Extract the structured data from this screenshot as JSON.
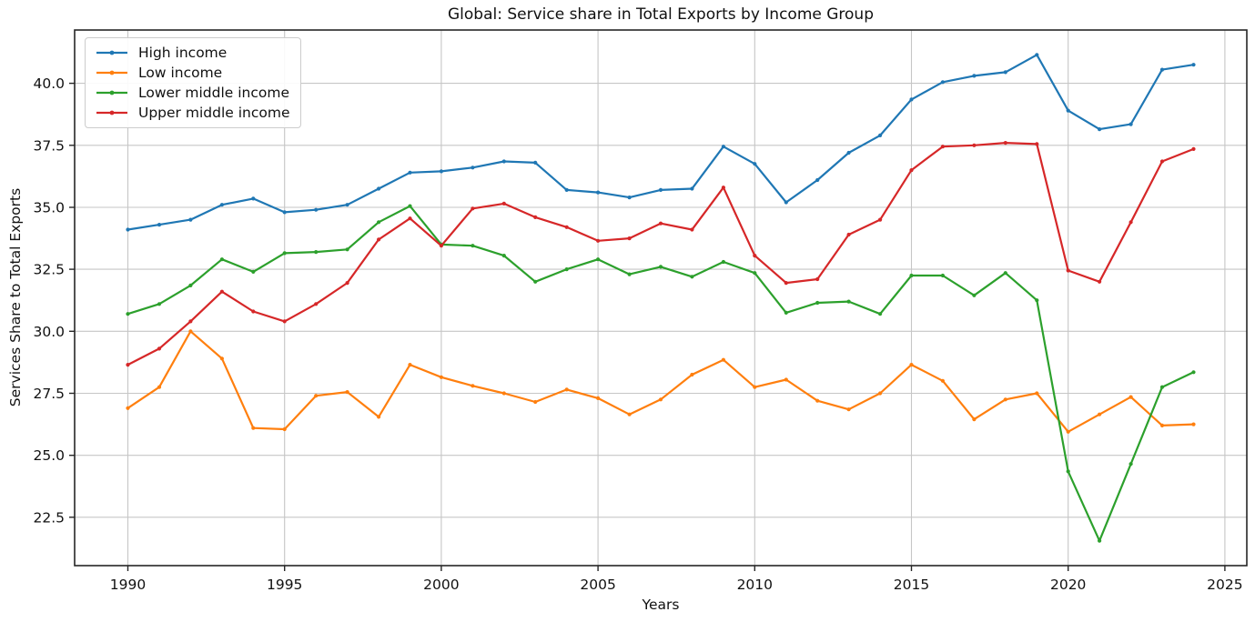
{
  "chart_data": {
    "type": "line",
    "title": "Global: Service share in Total Exports by Income Group",
    "xlabel": "Years",
    "ylabel": "Services Share to Total Exports",
    "grid": true,
    "legend_position": "upper left",
    "x": [
      1990,
      1991,
      1992,
      1993,
      1994,
      1995,
      1996,
      1997,
      1998,
      1999,
      2000,
      2001,
      2002,
      2003,
      2004,
      2005,
      2006,
      2007,
      2008,
      2009,
      2010,
      2011,
      2012,
      2013,
      2014,
      2015,
      2016,
      2017,
      2018,
      2019,
      2020,
      2021,
      2022,
      2023,
      2024
    ],
    "xticks": [
      1990,
      1995,
      2000,
      2005,
      2010,
      2015,
      2020,
      2025
    ],
    "yticks": [
      22.5,
      25.0,
      27.5,
      30.0,
      32.5,
      35.0,
      37.5,
      40.0
    ],
    "xlim": [
      1988.3,
      2025.7
    ],
    "ylim": [
      20.55,
      42.15
    ],
    "series": [
      {
        "name": "High income",
        "color": "#1f77b4",
        "values": [
          34.1,
          34.3,
          34.5,
          35.1,
          35.35,
          34.8,
          34.9,
          35.1,
          35.75,
          36.4,
          36.45,
          36.6,
          36.85,
          36.8,
          35.7,
          35.6,
          35.4,
          35.7,
          35.75,
          37.45,
          36.75,
          35.2,
          36.1,
          37.2,
          37.9,
          39.35,
          40.05,
          40.3,
          40.45,
          41.15,
          38.9,
          38.15,
          38.35,
          40.55,
          40.75
        ]
      },
      {
        "name": "Low income",
        "color": "#ff7f0e",
        "values": [
          26.9,
          27.75,
          30.0,
          28.9,
          26.1,
          26.05,
          27.4,
          27.55,
          26.55,
          28.65,
          28.15,
          27.8,
          27.5,
          27.15,
          27.65,
          27.3,
          26.65,
          27.25,
          28.25,
          28.85,
          27.75,
          28.05,
          27.2,
          26.85,
          27.5,
          28.65,
          28.0,
          26.45,
          27.25,
          27.5,
          25.95,
          26.65,
          27.35,
          26.2,
          26.25
        ]
      },
      {
        "name": "Lower middle income",
        "color": "#2ca02c",
        "values": [
          30.7,
          31.1,
          31.85,
          32.9,
          32.4,
          33.15,
          33.2,
          33.3,
          34.4,
          35.05,
          33.5,
          33.45,
          33.05,
          32.0,
          32.5,
          32.9,
          32.3,
          32.6,
          32.2,
          32.8,
          32.35,
          30.75,
          31.15,
          31.2,
          30.7,
          32.25,
          32.25,
          31.45,
          32.35,
          31.25,
          24.35,
          21.55,
          24.65,
          27.75,
          28.35
        ]
      },
      {
        "name": "Upper middle income",
        "color": "#d62728",
        "values": [
          28.65,
          29.3,
          30.4,
          31.6,
          30.8,
          30.4,
          31.1,
          31.95,
          33.7,
          34.55,
          33.45,
          34.95,
          35.15,
          34.6,
          34.2,
          33.65,
          33.75,
          34.35,
          34.1,
          35.8,
          33.05,
          31.95,
          32.1,
          33.9,
          34.5,
          36.5,
          37.45,
          37.5,
          37.6,
          37.55,
          32.45,
          32.0,
          34.4,
          36.85,
          37.35
        ]
      }
    ],
    "axis_colors": {
      "spine": "#262626",
      "grid": "#c6c6c6",
      "text": "#111111"
    }
  }
}
